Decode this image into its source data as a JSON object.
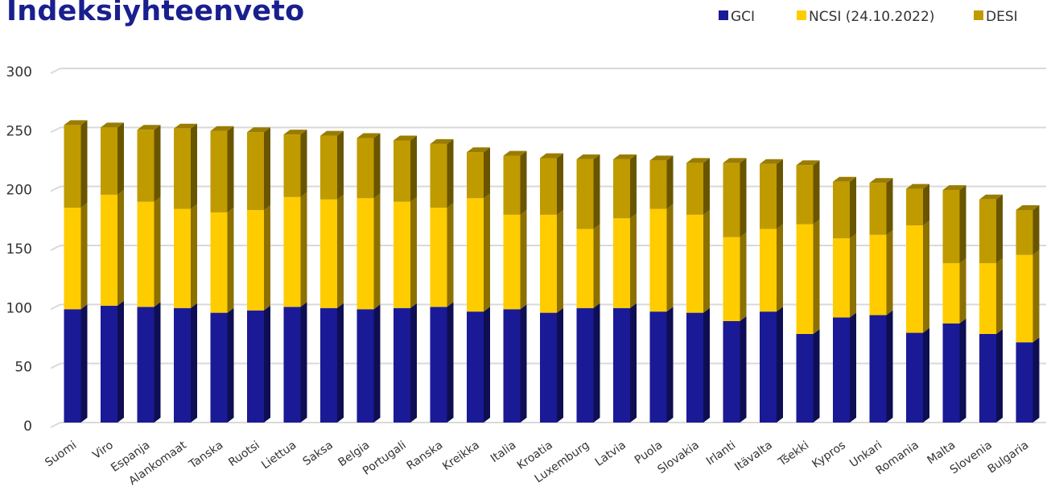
{
  "chart_data": {
    "type": "bar",
    "stacked": true,
    "title": "Indeksiyhteenveto",
    "xlabel": "",
    "ylabel": "",
    "ylim": [
      0,
      300
    ],
    "yticks": [
      0,
      50,
      100,
      150,
      200,
      250,
      300
    ],
    "grid": true,
    "legend_position": "top-right",
    "categories": [
      "Suomi",
      "Viro",
      "Espanja",
      "Alankomaat",
      "Tanska",
      "Ruotsi",
      "Liettua",
      "Saksa",
      "Belgia",
      "Portugali",
      "Ranska",
      "Kreikka",
      "Italia",
      "Kroatia",
      "Luxemburg",
      "Latvia",
      "Puola",
      "Slovakia",
      "Irlanti",
      "Itävalta",
      "Tšekki",
      "Kypros",
      "Unkari",
      "Romania",
      "Malta",
      "Slovenia",
      "Bulgaria"
    ],
    "series": [
      {
        "name": "GCI",
        "color": "#1a1a96",
        "values": [
          96,
          99,
          98,
          97,
          93,
          95,
          98,
          97,
          96,
          97,
          98,
          94,
          96,
          93,
          97,
          97,
          94,
          93,
          86,
          94,
          75,
          89,
          91,
          76,
          84,
          75,
          68
        ]
      },
      {
        "name": "NCSI (24.10.2022)",
        "color": "#ffcc00",
        "values": [
          86,
          94,
          89,
          84,
          85,
          85,
          93,
          92,
          94,
          90,
          84,
          96,
          80,
          83,
          67,
          76,
          87,
          83,
          71,
          70,
          93,
          67,
          68,
          91,
          51,
          60,
          74
        ]
      },
      {
        "name": "DESI",
        "color": "#bf9b00",
        "values": [
          70,
          57,
          61,
          68,
          69,
          66,
          53,
          54,
          51,
          52,
          54,
          39,
          50,
          48,
          59,
          50,
          41,
          44,
          63,
          55,
          50,
          48,
          44,
          31,
          62,
          54,
          38
        ]
      }
    ]
  }
}
